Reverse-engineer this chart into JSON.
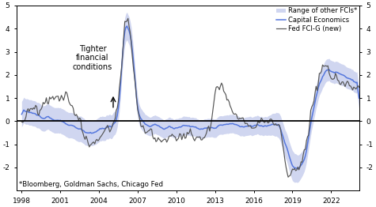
{
  "footnote": "*Bloomberg, Goldman Sachs, Chicago Fed",
  "annotation_text": "Tighter\nfinancial\nconditions",
  "xlim": [
    1997.6,
    2024.2
  ],
  "ylim": [
    -3,
    5
  ],
  "xticks": [
    1998,
    2001,
    2004,
    2007,
    2010,
    2013,
    2016,
    2019,
    2022
  ],
  "yticks": [
    -2,
    -1,
    0,
    1,
    2,
    3,
    4,
    5
  ],
  "legend_items": [
    "Range of other FCIs*",
    "Capital Economics",
    "Fed FCI-G (new)"
  ],
  "fill_color": "#b8c0e8",
  "ce_line_color": "#5577dd",
  "fed_line_color": "#555555",
  "zero_line_color": "#000000",
  "background_color": "#ffffff"
}
